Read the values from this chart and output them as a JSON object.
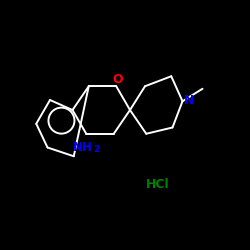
{
  "background_color": "#000000",
  "line_color": "#ffffff",
  "O_color": "#ff0000",
  "N_color": "#0000ff",
  "HCl_color": "#008000",
  "NH2_color": "#0000ff",
  "figsize": [
    2.5,
    2.5
  ],
  "dpi": 100,
  "lw": 1.4,
  "xlim": [
    0,
    10
  ],
  "ylim": [
    0,
    10
  ],
  "O_label": "O",
  "N_label": "N",
  "NH2_label1": "NH",
  "NH2_label2": "2",
  "HCl_label": "HCl"
}
